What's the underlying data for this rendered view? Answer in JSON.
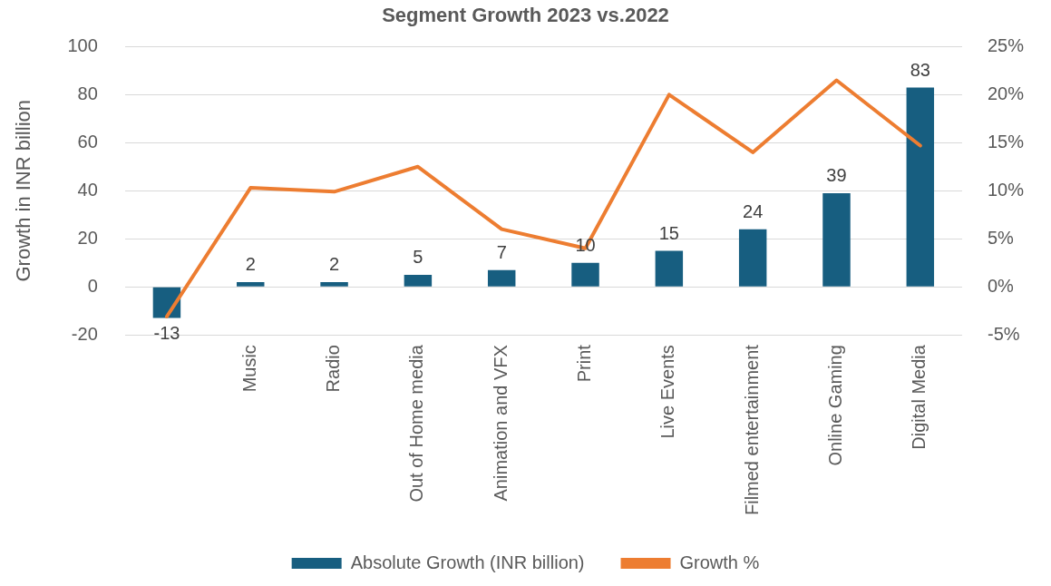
{
  "chart_data": {
    "type": "bar",
    "title": "Segment Growth 2023 vs.2022",
    "ylabel": "Growth in INR billion",
    "categories": [
      null,
      "Music",
      "Radio",
      "Out of Home media",
      "Animation and VFX",
      "Print",
      "Live Events",
      "Filmed entertainment",
      "Online Gaming",
      "Digital Media"
    ],
    "series": [
      {
        "name": "Absolute Growth (INR billion)",
        "color": "#175e80",
        "values": [
          -13,
          2,
          2,
          5,
          7,
          10,
          15,
          24,
          39,
          83
        ],
        "value_labels": [
          "-13",
          "2",
          "2",
          "5",
          "7",
          "10",
          "15",
          "24",
          "39",
          "83"
        ]
      },
      {
        "name": "Growth %",
        "type": "line",
        "axis": "y2",
        "color": "#ed7d31",
        "values": [
          -3.1,
          10.3,
          9.9,
          12.5,
          6.0,
          4.0,
          20.0,
          14.0,
          21.5,
          14.7
        ]
      }
    ],
    "ylim": [
      -20,
      100
    ],
    "yticks": [
      -20,
      0,
      20,
      40,
      60,
      80,
      100
    ],
    "y2lim": [
      -5,
      25
    ],
    "y2ticks": [
      {
        "value": -5,
        "label": "-5%"
      },
      {
        "value": 0,
        "label": "0%"
      },
      {
        "value": 5,
        "label": "5%"
      },
      {
        "value": 10,
        "label": "10%"
      },
      {
        "value": 15,
        "label": "15%"
      },
      {
        "value": 20,
        "label": "20%"
      },
      {
        "value": 25,
        "label": "25%"
      }
    ],
    "grid": "y",
    "legend": "bottom",
    "marker": "none",
    "line_style": "solid"
  }
}
